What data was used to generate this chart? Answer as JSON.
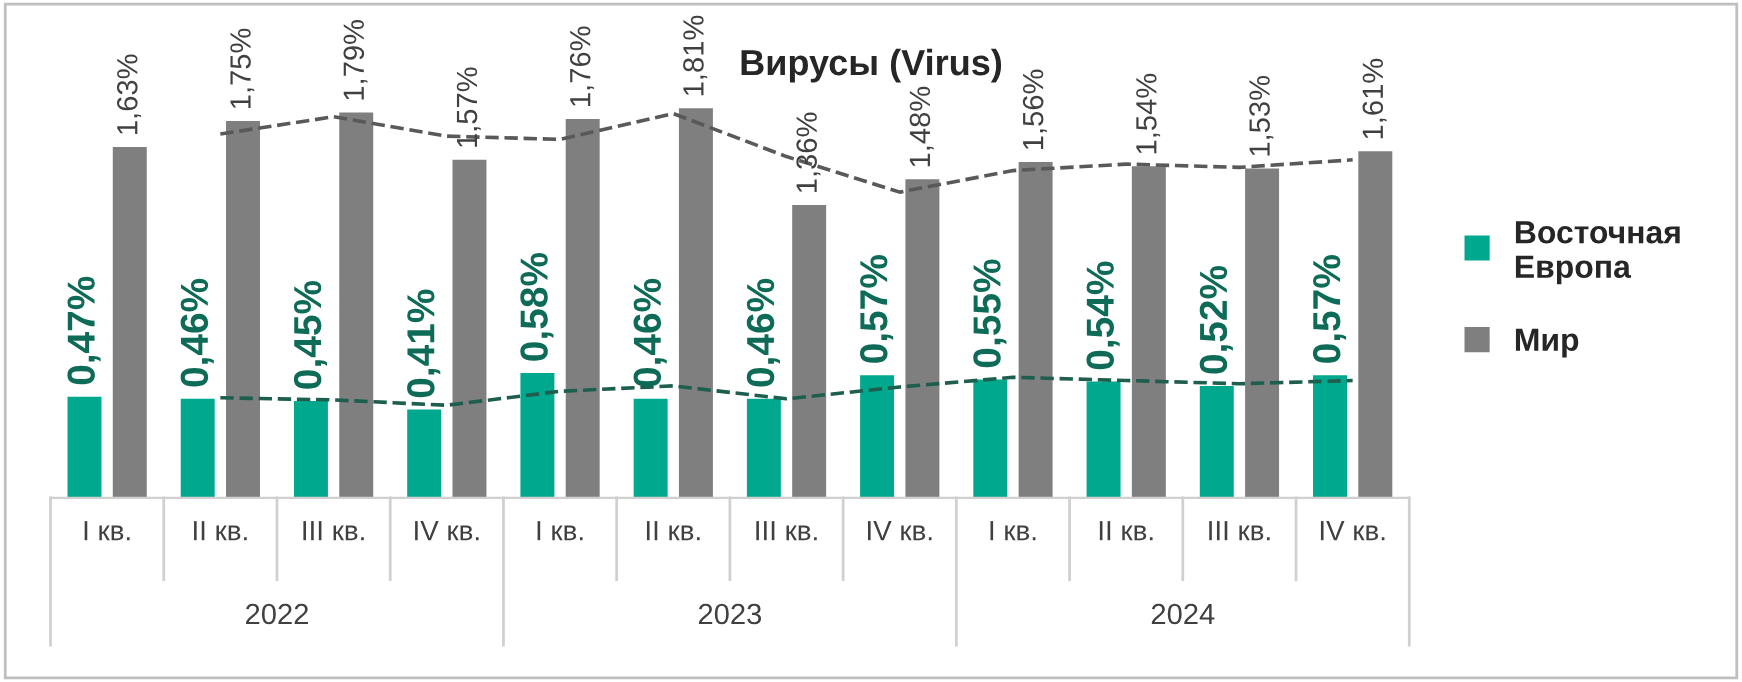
{
  "chart_data": {
    "type": "bar",
    "title": "Вирусы (Virus)",
    "categories": [
      "I кв.",
      "II кв.",
      "III кв.",
      "IV кв.",
      "I кв.",
      "II кв.",
      "III кв.",
      "IV кв.",
      "I кв.",
      "II кв.",
      "III кв.",
      "IV кв."
    ],
    "annotations": [
      "2022",
      "2023",
      "2024"
    ],
    "series": [
      {
        "name": "Восточная Европа",
        "color": "#00a88e",
        "values": [
          0.47,
          0.46,
          0.45,
          0.41,
          0.58,
          0.46,
          0.46,
          0.57,
          0.55,
          0.54,
          0.52,
          0.57
        ],
        "value_labels": [
          "0,47%",
          "0,46%",
          "0,45%",
          "0,41%",
          "0,58%",
          "0,46%",
          "0,46%",
          "0,57%",
          "0,55%",
          "0,54%",
          "0,52%",
          "0,57%"
        ]
      },
      {
        "name": "Мир",
        "color": "#7f7f7f",
        "values": [
          1.63,
          1.75,
          1.79,
          1.57,
          1.76,
          1.81,
          1.36,
          1.48,
          1.56,
          1.54,
          1.53,
          1.61
        ],
        "value_labels": [
          "1,63%",
          "1,75%",
          "1,79%",
          "1,57%",
          "1,76%",
          "1,81%",
          "1,36%",
          "1,48%",
          "1,56%",
          "1,54%",
          "1,53%",
          "1,61%"
        ]
      },
      {
        "type": "line",
        "line_style": "dashed",
        "color": "#1e5e4e",
        "values": [
          null,
          0.465,
          0.455,
          0.43,
          0.495,
          0.52,
          0.46,
          0.515,
          0.56,
          0.545,
          0.53,
          0.545
        ]
      },
      {
        "type": "line",
        "line_style": "dashed",
        "color": "#595959",
        "values": [
          null,
          1.69,
          1.77,
          1.68,
          1.665,
          1.785,
          1.585,
          1.42,
          1.52,
          1.55,
          1.535,
          1.57
        ]
      }
    ],
    "legend": "right",
    "grid": false
  }
}
